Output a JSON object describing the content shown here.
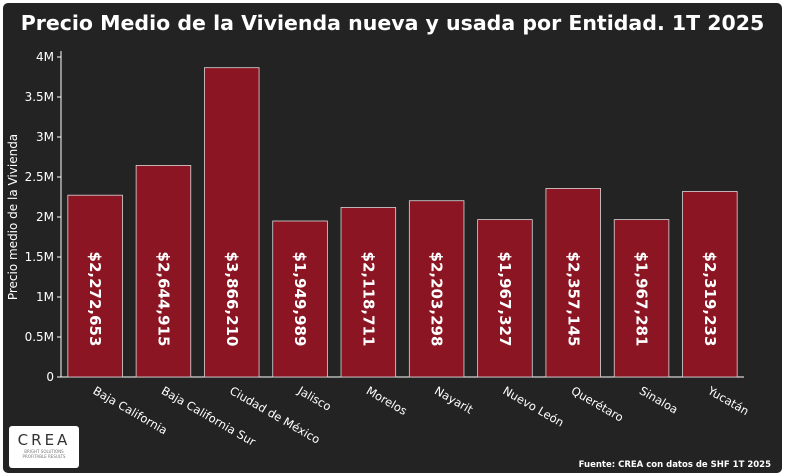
{
  "chart_data": {
    "type": "bar",
    "title": "Precio Medio de la Vivienda nueva y usada por Entidad. 1T 2025",
    "xlabel": "",
    "ylabel": "Precio medio de la Vivienda",
    "categories": [
      "Baja California",
      "Baja California Sur",
      "Ciudad de México",
      "Jalisco",
      "Morelos",
      "Nayarit",
      "Nuevo León",
      "Querétaro",
      "Sinaloa",
      "Yucatán"
    ],
    "values": [
      2272653,
      2644915,
      3866210,
      1949989,
      2118711,
      2203298,
      1967327,
      2357145,
      1967281,
      2319233
    ],
    "data_labels": [
      "$2,272,653",
      "$2,644,915",
      "$3,866,210",
      "$1,949,989",
      "$2,118,711",
      "$2,203,298",
      "$1,967,327",
      "$2,357,145",
      "$1,967,281",
      "$2,319,233"
    ],
    "ylim": [
      0,
      4000000
    ],
    "yticks": [
      0,
      500000,
      1000000,
      1500000,
      2000000,
      2500000,
      3000000,
      3500000,
      4000000
    ],
    "ytick_labels": [
      "0",
      "0.5M",
      "1M",
      "1.5M",
      "2M",
      "2.5M",
      "3M",
      "3.5M",
      "4M"
    ],
    "grid": false,
    "legend": "none",
    "bar_color": "#8b1522",
    "background_color": "#232323"
  },
  "footer": {
    "source": "Fuente: CREA con datos de SHF 1T 2025"
  },
  "logo": {
    "word": "CREA",
    "tagline_1": "BRIGHT SOLUTIONS",
    "tagline_2": "PROFITABLE RESULTS"
  }
}
